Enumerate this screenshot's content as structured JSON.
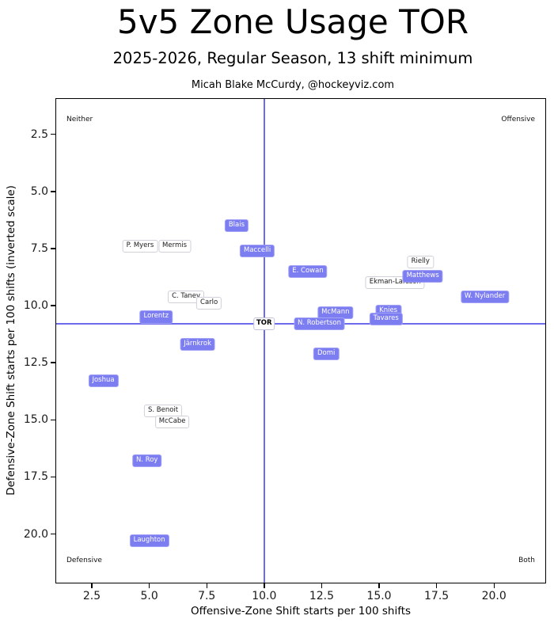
{
  "header": {
    "title": "5v5 Zone Usage TOR",
    "subtitle": "2025-2026, Regular Season, 13 shift minimum",
    "attribution": "Micah Blake McCurdy, @hockeyviz.com"
  },
  "colors": {
    "forward_fill": "#7d7df2",
    "forward_border": "#a2a2f7",
    "forward_text": "#ffffff",
    "defense_fill": "#ffffff",
    "defense_border": "#d0d0da",
    "defense_text": "#1a1a1a",
    "ref_line": "#6b6bec",
    "spine": "#000000"
  },
  "chart_data": {
    "type": "scatter",
    "title": "5v5 Zone Usage TOR",
    "xlabel": "Offensive-Zone Shift starts per 100 shifts",
    "ylabel": "Defensive-Zone Shift starts per 100 shifts (inverted scale)",
    "xlim": [
      0.95,
      22.3
    ],
    "ylim": [
      0.95,
      22.2
    ],
    "y_inverted": true,
    "grid": false,
    "xticks": [
      2.5,
      5.0,
      7.5,
      10.0,
      12.5,
      15.0,
      17.5,
      20.0
    ],
    "yticks": [
      2.5,
      5.0,
      7.5,
      10.0,
      12.5,
      15.0,
      17.5,
      20.0
    ],
    "ref_vline_x": 10.0,
    "ref_hline_y": 10.8,
    "team_label": {
      "label": "TOR",
      "x": 10.0,
      "y": 10.8
    },
    "corner_labels": {
      "top_left": "Neither",
      "top_right": "Offensive",
      "bottom_left": "Defensive",
      "bottom_right": "Both"
    },
    "points": [
      {
        "label": "P. Myers",
        "x": 4.6,
        "y": 7.4,
        "group": "defense"
      },
      {
        "label": "Mermis",
        "x": 6.1,
        "y": 7.4,
        "group": "defense"
      },
      {
        "label": "Blais",
        "x": 8.8,
        "y": 6.5,
        "group": "forward"
      },
      {
        "label": "Maccelli",
        "x": 9.7,
        "y": 7.6,
        "group": "forward"
      },
      {
        "label": "Rielly",
        "x": 16.8,
        "y": 8.1,
        "group": "defense"
      },
      {
        "label": "E. Cowan",
        "x": 11.9,
        "y": 8.5,
        "group": "forward"
      },
      {
        "label": "Ekman-Larsson",
        "x": 15.7,
        "y": 9.0,
        "group": "defense"
      },
      {
        "label": "Matthews",
        "x": 16.9,
        "y": 8.7,
        "group": "forward"
      },
      {
        "label": "W. Nylander",
        "x": 19.6,
        "y": 9.6,
        "group": "forward"
      },
      {
        "label": "C. Tanev",
        "x": 6.6,
        "y": 9.6,
        "group": "defense"
      },
      {
        "label": "Carlo",
        "x": 7.6,
        "y": 9.9,
        "group": "defense"
      },
      {
        "label": "Lorentz",
        "x": 5.3,
        "y": 10.5,
        "group": "forward"
      },
      {
        "label": "McMann",
        "x": 13.1,
        "y": 10.3,
        "group": "forward"
      },
      {
        "label": "Knies",
        "x": 15.4,
        "y": 10.25,
        "group": "forward"
      },
      {
        "label": "Tavares",
        "x": 15.3,
        "y": 10.6,
        "group": "forward"
      },
      {
        "label": "N. Robertson",
        "x": 12.4,
        "y": 10.8,
        "group": "forward"
      },
      {
        "label": "Järnkrok",
        "x": 7.1,
        "y": 11.7,
        "group": "forward"
      },
      {
        "label": "Domi",
        "x": 12.7,
        "y": 12.1,
        "group": "forward"
      },
      {
        "label": "Joshua",
        "x": 3.0,
        "y": 13.3,
        "group": "forward"
      },
      {
        "label": "S. Benoit",
        "x": 5.6,
        "y": 14.6,
        "group": "defense"
      },
      {
        "label": "McCabe",
        "x": 6.0,
        "y": 15.1,
        "group": "defense"
      },
      {
        "label": "N. Roy",
        "x": 4.9,
        "y": 16.8,
        "group": "forward"
      },
      {
        "label": "Laughton",
        "x": 5.0,
        "y": 20.3,
        "group": "forward"
      }
    ]
  }
}
